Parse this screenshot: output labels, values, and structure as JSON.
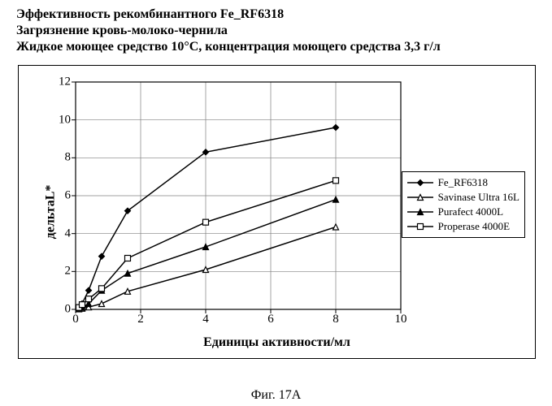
{
  "titles": {
    "line1": "Эффективность рекомбинантного Fe_RF6318",
    "line2": "Загрязнение кровь-молоко-чернила",
    "line3": "Жидкое моющее средство 10°С, концентрация моющего средства 3,3 г/л"
  },
  "caption": "Фиг. 17А",
  "chart": {
    "type": "line",
    "xlabel": "Единицы активности/мл",
    "ylabel": "дельтаL*",
    "xlim": [
      0,
      10
    ],
    "ylim": [
      0,
      12
    ],
    "xtick_step": 2,
    "ytick_step": 2,
    "axis_color": "#000000",
    "grid_color": "#808080",
    "grid_on": true,
    "background_color": "#ffffff",
    "line_width": 1.5,
    "marker_size": 7,
    "label_fontsize": 16,
    "tick_fontsize": 15,
    "series": [
      {
        "name": "Fe_RF6318",
        "marker": "diamond",
        "fill": "filled",
        "color": "#000000",
        "x": [
          0.1,
          0.2,
          0.4,
          0.8,
          1.6,
          4.0,
          8.0
        ],
        "y": [
          0.1,
          0.3,
          1.0,
          2.8,
          5.2,
          8.3,
          9.6
        ]
      },
      {
        "name": "Savinase Ultra 16L",
        "marker": "triangle",
        "fill": "open",
        "color": "#000000",
        "x": [
          0.1,
          0.2,
          0.4,
          0.8,
          1.6,
          4.0,
          8.0
        ],
        "y": [
          0.02,
          0.05,
          0.12,
          0.3,
          0.95,
          2.1,
          4.35
        ]
      },
      {
        "name": "Purafect 4000L",
        "marker": "triangle",
        "fill": "filled",
        "color": "#000000",
        "x": [
          0.1,
          0.2,
          0.4,
          0.8,
          1.6,
          4.0,
          8.0
        ],
        "y": [
          0.05,
          0.1,
          0.3,
          1.0,
          1.9,
          3.3,
          5.8
        ]
      },
      {
        "name": "Properase 4000E",
        "marker": "square",
        "fill": "open",
        "color": "#000000",
        "x": [
          0.1,
          0.2,
          0.4,
          0.8,
          1.6,
          4.0,
          8.0
        ],
        "y": [
          0.1,
          0.25,
          0.55,
          1.1,
          2.7,
          4.6,
          6.8
        ]
      }
    ]
  }
}
